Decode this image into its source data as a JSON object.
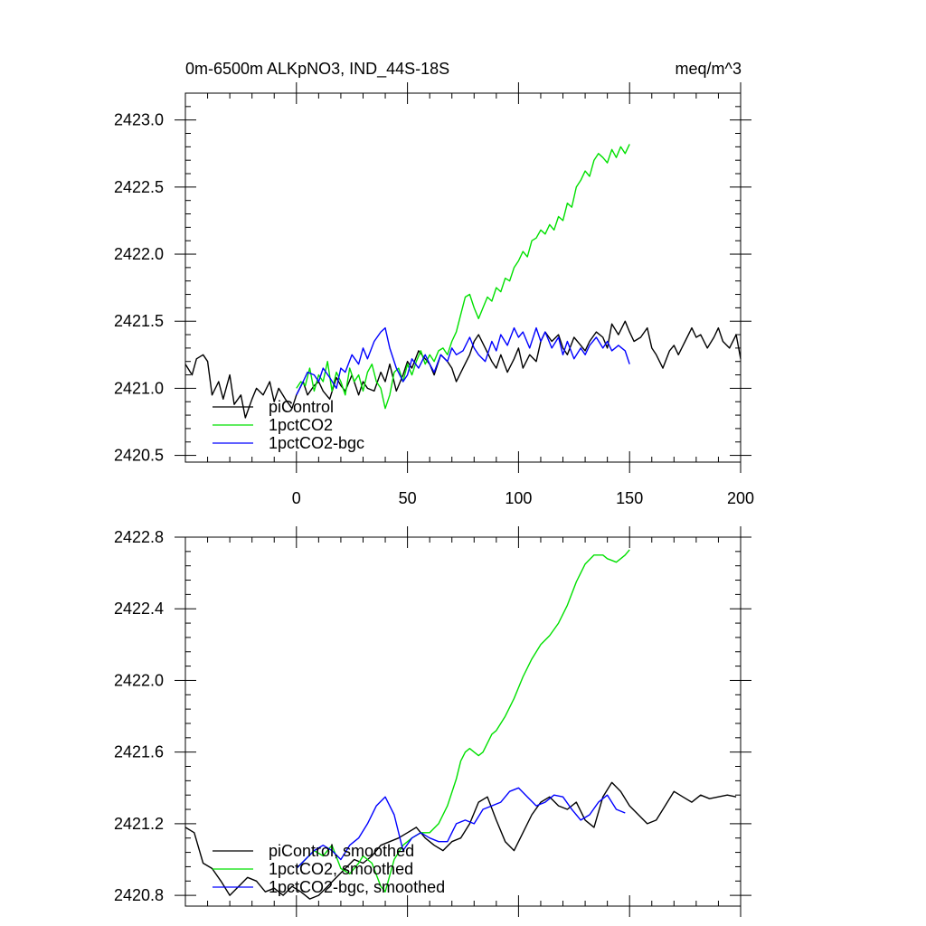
{
  "chart_data": [
    {
      "type": "line",
      "title_left": "0m-6500m ALKpNO3, IND_44S-18S",
      "title_right": "meq/m^3",
      "xlim": [
        -50,
        200
      ],
      "ylim": [
        2420.45,
        2423.2
      ],
      "xticks": [
        0,
        50,
        100,
        150,
        200
      ],
      "xtick_labels": [
        "0",
        "50",
        "100",
        "150",
        "200"
      ],
      "yticks": [
        2420.5,
        2421.0,
        2421.5,
        2422.0,
        2422.5,
        2423.0
      ],
      "ytick_labels": [
        "2420.5",
        "2421.0",
        "2421.5",
        "2422.0",
        "2422.5",
        "2423.0"
      ],
      "legend": [
        "piControl",
        "1pctCO2",
        "1pctCO2-bgc"
      ],
      "legend_position": "bottom-left",
      "series": [
        {
          "name": "piControl",
          "color": "#000000",
          "x": [
            -50,
            -47,
            -45,
            -42,
            -40,
            -38,
            -35,
            -33,
            -30,
            -28,
            -25,
            -23,
            -20,
            -18,
            -15,
            -12,
            -10,
            -8,
            -5,
            -2,
            0,
            3,
            5,
            8,
            10,
            12,
            15,
            18,
            20,
            22,
            25,
            28,
            30,
            32,
            35,
            38,
            40,
            42,
            45,
            48,
            50,
            52,
            55,
            58,
            60,
            62,
            65,
            68,
            70,
            72,
            75,
            78,
            80,
            82,
            85,
            88,
            90,
            92,
            95,
            98,
            100,
            102,
            105,
            108,
            110,
            112,
            115,
            118,
            120,
            122,
            125,
            128,
            130,
            132,
            135,
            138,
            140,
            142,
            145,
            148,
            150,
            152,
            155,
            158,
            160,
            162,
            165,
            168,
            170,
            172,
            175,
            178,
            180,
            182,
            185,
            188,
            190,
            192,
            195,
            198,
            200
          ],
          "y": [
            2421.18,
            2421.1,
            2421.22,
            2421.25,
            2421.2,
            2420.95,
            2421.05,
            2420.92,
            2421.1,
            2420.88,
            2420.95,
            2420.78,
            2420.92,
            2421.0,
            2420.95,
            2421.05,
            2420.9,
            2421.0,
            2420.92,
            2420.85,
            2420.95,
            2421.05,
            2420.95,
            2421.02,
            2421.05,
            2420.98,
            2420.92,
            2421.08,
            2421.02,
            2420.98,
            2421.1,
            2420.95,
            2421.05,
            2421.0,
            2420.98,
            2421.12,
            2421.05,
            2421.18,
            2420.98,
            2421.1,
            2421.2,
            2421.15,
            2421.28,
            2421.22,
            2421.18,
            2421.1,
            2421.25,
            2421.2,
            2421.15,
            2421.05,
            2421.15,
            2421.25,
            2421.35,
            2421.4,
            2421.3,
            2421.2,
            2421.15,
            2421.25,
            2421.12,
            2421.22,
            2421.3,
            2421.15,
            2421.25,
            2421.2,
            2421.35,
            2421.42,
            2421.35,
            2421.4,
            2421.3,
            2421.25,
            2421.38,
            2421.32,
            2421.28,
            2421.35,
            2421.42,
            2421.38,
            2421.3,
            2421.48,
            2421.4,
            2421.5,
            2421.42,
            2421.35,
            2421.38,
            2421.45,
            2421.3,
            2421.25,
            2421.15,
            2421.28,
            2421.32,
            2421.25,
            2421.35,
            2421.45,
            2421.38,
            2421.4,
            2421.3,
            2421.38,
            2421.45,
            2421.35,
            2421.3,
            2421.4,
            2421.22
          ]
        },
        {
          "name": "1pctCO2",
          "color": "#00e000",
          "x": [
            0,
            2,
            4,
            6,
            8,
            10,
            12,
            14,
            16,
            18,
            20,
            22,
            24,
            26,
            28,
            30,
            32,
            34,
            36,
            38,
            40,
            42,
            44,
            46,
            48,
            50,
            52,
            54,
            56,
            58,
            60,
            62,
            64,
            66,
            68,
            70,
            72,
            74,
            76,
            78,
            80,
            82,
            84,
            86,
            88,
            90,
            92,
            94,
            96,
            98,
            100,
            102,
            104,
            106,
            108,
            110,
            112,
            114,
            116,
            118,
            120,
            122,
            124,
            126,
            128,
            130,
            132,
            134,
            136,
            138,
            140,
            142,
            144,
            146,
            148,
            150
          ],
          "y": [
            2421.0,
            2421.05,
            2421.02,
            2421.15,
            2420.98,
            2421.1,
            2421.05,
            2421.2,
            2420.98,
            2421.12,
            2421.05,
            2420.95,
            2421.15,
            2421.05,
            2421.1,
            2420.98,
            2421.12,
            2421.18,
            2421.05,
            2421.0,
            2420.85,
            2420.95,
            2421.12,
            2421.15,
            2421.05,
            2421.18,
            2421.1,
            2421.2,
            2421.28,
            2421.18,
            2421.25,
            2421.2,
            2421.28,
            2421.3,
            2421.25,
            2421.35,
            2421.42,
            2421.55,
            2421.68,
            2421.7,
            2421.6,
            2421.52,
            2421.6,
            2421.68,
            2421.65,
            2421.75,
            2421.72,
            2421.82,
            2421.8,
            2421.9,
            2421.95,
            2422.02,
            2421.98,
            2422.1,
            2422.12,
            2422.18,
            2422.15,
            2422.22,
            2422.18,
            2422.28,
            2422.25,
            2422.38,
            2422.35,
            2422.5,
            2422.55,
            2422.62,
            2422.58,
            2422.7,
            2422.75,
            2422.72,
            2422.68,
            2422.78,
            2422.72,
            2422.8,
            2422.75,
            2422.82
          ]
        },
        {
          "name": "1pctCO2-bgc",
          "color": "#0000ff",
          "x": [
            0,
            3,
            5,
            8,
            10,
            12,
            15,
            18,
            20,
            22,
            25,
            28,
            30,
            32,
            35,
            38,
            40,
            42,
            45,
            48,
            50,
            52,
            55,
            58,
            60,
            62,
            65,
            68,
            70,
            72,
            75,
            78,
            80,
            82,
            85,
            88,
            90,
            92,
            95,
            98,
            100,
            102,
            105,
            108,
            110,
            112,
            115,
            118,
            120,
            122,
            125,
            128,
            130,
            132,
            135,
            138,
            140,
            142,
            145,
            148,
            150
          ],
          "y": [
            2420.95,
            2421.05,
            2421.12,
            2421.1,
            2421.05,
            2421.15,
            2421.08,
            2421.0,
            2421.15,
            2421.12,
            2421.25,
            2421.18,
            2421.3,
            2421.22,
            2421.35,
            2421.42,
            2421.45,
            2421.3,
            2421.15,
            2421.05,
            2421.1,
            2421.22,
            2421.15,
            2421.25,
            2421.18,
            2421.12,
            2421.25,
            2421.2,
            2421.3,
            2421.25,
            2421.28,
            2421.38,
            2421.3,
            2421.25,
            2421.2,
            2421.35,
            2421.28,
            2421.4,
            2421.32,
            2421.45,
            2421.38,
            2421.42,
            2421.3,
            2421.45,
            2421.35,
            2421.42,
            2421.3,
            2421.38,
            2421.25,
            2421.35,
            2421.22,
            2421.3,
            2421.25,
            2421.32,
            2421.38,
            2421.3,
            2421.35,
            2421.28,
            2421.32,
            2421.28,
            2421.18
          ]
        }
      ]
    },
    {
      "type": "line",
      "xlim": [
        -50,
        200
      ],
      "ylim": [
        2420.74,
        2422.8
      ],
      "xticks": [
        0,
        50,
        100,
        150,
        200
      ],
      "yticks": [
        2420.8,
        2421.2,
        2421.6,
        2422.0,
        2422.4,
        2422.8
      ],
      "ytick_labels": [
        "2420.8",
        "2421.2",
        "2421.6",
        "2422.0",
        "2422.4",
        "2422.8"
      ],
      "legend": [
        "piControl, smoothed",
        "1pctCO2, smoothed",
        "1pctCO2-bgc, smoothed"
      ],
      "legend_position": "bottom-left",
      "series": [
        {
          "name": "piControl, smoothed",
          "color": "#000000",
          "x": [
            -50,
            -46,
            -42,
            -38,
            -34,
            -30,
            -26,
            -22,
            -18,
            -14,
            -10,
            -6,
            -2,
            2,
            6,
            10,
            14,
            18,
            22,
            26,
            30,
            34,
            38,
            42,
            46,
            50,
            54,
            58,
            62,
            66,
            70,
            74,
            78,
            82,
            86,
            90,
            94,
            98,
            102,
            106,
            110,
            114,
            118,
            122,
            126,
            130,
            134,
            138,
            142,
            146,
            150,
            154,
            158,
            162,
            166,
            170,
            174,
            178,
            182,
            186,
            190,
            194,
            198
          ],
          "y": [
            2421.18,
            2421.15,
            2420.98,
            2420.95,
            2420.88,
            2420.8,
            2420.85,
            2420.9,
            2420.88,
            2420.82,
            2420.84,
            2420.8,
            2420.85,
            2420.82,
            2420.78,
            2420.8,
            2420.85,
            2420.9,
            2420.95,
            2421.0,
            2420.98,
            2421.02,
            2421.08,
            2421.1,
            2421.12,
            2421.15,
            2421.18,
            2421.12,
            2421.08,
            2421.05,
            2421.1,
            2421.12,
            2421.2,
            2421.32,
            2421.35,
            2421.22,
            2421.1,
            2421.05,
            2421.15,
            2421.25,
            2421.32,
            2421.35,
            2421.3,
            2421.28,
            2421.32,
            2421.22,
            2421.18,
            2421.35,
            2421.43,
            2421.38,
            2421.3,
            2421.25,
            2421.2,
            2421.22,
            2421.3,
            2421.38,
            2421.35,
            2421.32,
            2421.36,
            2421.34,
            2421.35,
            2421.36,
            2421.35
          ]
        },
        {
          "name": "1pctCO2, smoothed",
          "color": "#00e000",
          "x": [
            0,
            4,
            8,
            12,
            16,
            20,
            24,
            28,
            30,
            34,
            38,
            40,
            44,
            48,
            52,
            56,
            60,
            64,
            68,
            72,
            74,
            76,
            78,
            80,
            82,
            84,
            86,
            88,
            90,
            94,
            98,
            102,
            106,
            110,
            114,
            118,
            122,
            126,
            130,
            134,
            138,
            140,
            142,
            144,
            146,
            148,
            150
          ],
          "y": [
            2420.95,
            2421.0,
            2421.05,
            2421.02,
            2421.08,
            2420.95,
            2420.92,
            2420.98,
            2421.02,
            2420.98,
            2420.85,
            2420.82,
            2421.0,
            2421.08,
            2421.12,
            2421.15,
            2421.15,
            2421.2,
            2421.3,
            2421.45,
            2421.55,
            2421.6,
            2421.62,
            2421.6,
            2421.58,
            2421.6,
            2421.65,
            2421.7,
            2421.72,
            2421.8,
            2421.9,
            2422.02,
            2422.12,
            2422.2,
            2422.25,
            2422.32,
            2422.42,
            2422.55,
            2422.65,
            2422.7,
            2422.7,
            2422.68,
            2422.67,
            2422.66,
            2422.68,
            2422.7,
            2422.73
          ]
        },
        {
          "name": "1pctCO2-bgc, smoothed",
          "color": "#0000ff",
          "x": [
            0,
            4,
            8,
            12,
            16,
            20,
            24,
            28,
            32,
            36,
            40,
            44,
            48,
            52,
            56,
            60,
            64,
            68,
            72,
            76,
            80,
            84,
            88,
            92,
            96,
            100,
            104,
            108,
            112,
            116,
            120,
            124,
            128,
            132,
            136,
            140,
            144,
            148
          ],
          "y": [
            2420.95,
            2421.0,
            2421.05,
            2421.08,
            2421.05,
            2421.0,
            2421.08,
            2421.12,
            2421.2,
            2421.3,
            2421.35,
            2421.25,
            2421.05,
            2421.12,
            2421.15,
            2421.12,
            2421.1,
            2421.1,
            2421.2,
            2421.22,
            2421.2,
            2421.28,
            2421.3,
            2421.32,
            2421.38,
            2421.4,
            2421.35,
            2421.3,
            2421.32,
            2421.36,
            2421.35,
            2421.28,
            2421.22,
            2421.25,
            2421.32,
            2421.36,
            2421.28,
            2421.26
          ]
        }
      ]
    }
  ]
}
